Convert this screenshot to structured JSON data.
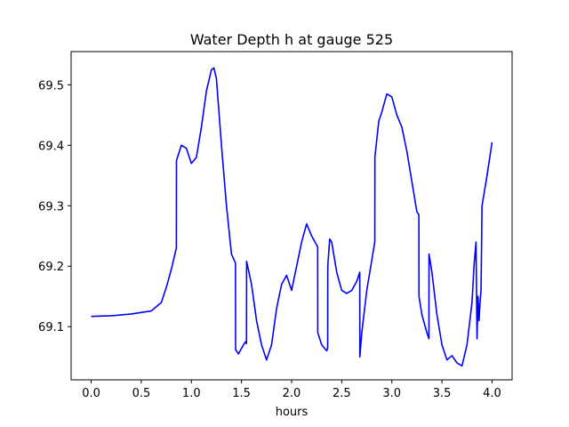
{
  "chart_data": {
    "type": "line",
    "title": "Water Depth h at gauge 525",
    "xlabel": "hours",
    "ylabel": "",
    "xlim": [
      -0.2,
      4.2
    ],
    "ylim": [
      69.012,
      69.555
    ],
    "xticks": [
      0.0,
      0.5,
      1.0,
      1.5,
      2.0,
      2.5,
      3.0,
      3.5,
      4.0
    ],
    "xtick_labels": [
      "0.0",
      "0.5",
      "1.0",
      "1.5",
      "2.0",
      "2.5",
      "3.0",
      "3.5",
      "4.0"
    ],
    "yticks": [
      69.1,
      69.2,
      69.3,
      69.4,
      69.5
    ],
    "ytick_labels": [
      "69.1",
      "69.2",
      "69.3",
      "69.4",
      "69.5"
    ],
    "grid": false,
    "legend": "none",
    "series": [
      {
        "color": "#0000ff",
        "x": [
          0.0,
          0.2,
          0.4,
          0.6,
          0.7,
          0.75,
          0.8,
          0.85,
          0.851,
          0.9,
          0.95,
          1.0,
          1.05,
          1.1,
          1.15,
          1.2,
          1.225,
          1.25,
          1.3,
          1.35,
          1.4,
          1.44,
          1.441,
          1.47,
          1.52,
          1.54,
          1.55,
          1.551,
          1.6,
          1.65,
          1.7,
          1.75,
          1.8,
          1.85,
          1.9,
          1.95,
          2.0,
          2.1,
          2.15,
          2.2,
          2.25,
          2.26,
          2.261,
          2.3,
          2.35,
          2.36,
          2.361,
          2.38,
          2.4,
          2.45,
          2.5,
          2.55,
          2.6,
          2.65,
          2.68,
          2.681,
          2.7,
          2.75,
          2.8,
          2.83,
          2.831,
          2.85,
          2.87,
          2.9,
          2.95,
          3.0,
          3.05,
          3.1,
          3.15,
          3.2,
          3.25,
          3.27,
          3.271,
          3.3,
          3.35,
          3.37,
          3.371,
          3.4,
          3.45,
          3.5,
          3.55,
          3.6,
          3.65,
          3.7,
          3.75,
          3.8,
          3.82,
          3.84,
          3.85,
          3.86,
          3.87,
          3.88,
          3.89,
          3.9,
          3.95,
          4.0
        ],
        "y": [
          69.117,
          69.118,
          69.121,
          69.126,
          69.14,
          69.165,
          69.195,
          69.23,
          69.375,
          69.4,
          69.395,
          69.37,
          69.38,
          69.43,
          69.49,
          69.525,
          69.528,
          69.51,
          69.4,
          69.3,
          69.22,
          69.205,
          69.062,
          69.055,
          69.07,
          69.075,
          69.072,
          69.208,
          69.17,
          69.11,
          69.07,
          69.045,
          69.07,
          69.13,
          69.17,
          69.185,
          69.16,
          69.24,
          69.27,
          69.25,
          69.235,
          69.232,
          69.09,
          69.07,
          69.06,
          69.065,
          69.2,
          69.245,
          69.24,
          69.19,
          69.16,
          69.155,
          69.16,
          69.175,
          69.19,
          69.05,
          69.09,
          69.16,
          69.21,
          69.24,
          69.38,
          69.41,
          69.44,
          69.455,
          69.485,
          69.48,
          69.45,
          69.43,
          69.39,
          69.34,
          69.29,
          69.285,
          69.15,
          69.12,
          69.09,
          69.08,
          69.22,
          69.19,
          69.12,
          69.07,
          69.045,
          69.052,
          69.04,
          69.035,
          69.07,
          69.14,
          69.2,
          69.24,
          69.08,
          69.15,
          69.11,
          69.14,
          69.16,
          69.3,
          69.35,
          69.405
        ]
      }
    ]
  }
}
